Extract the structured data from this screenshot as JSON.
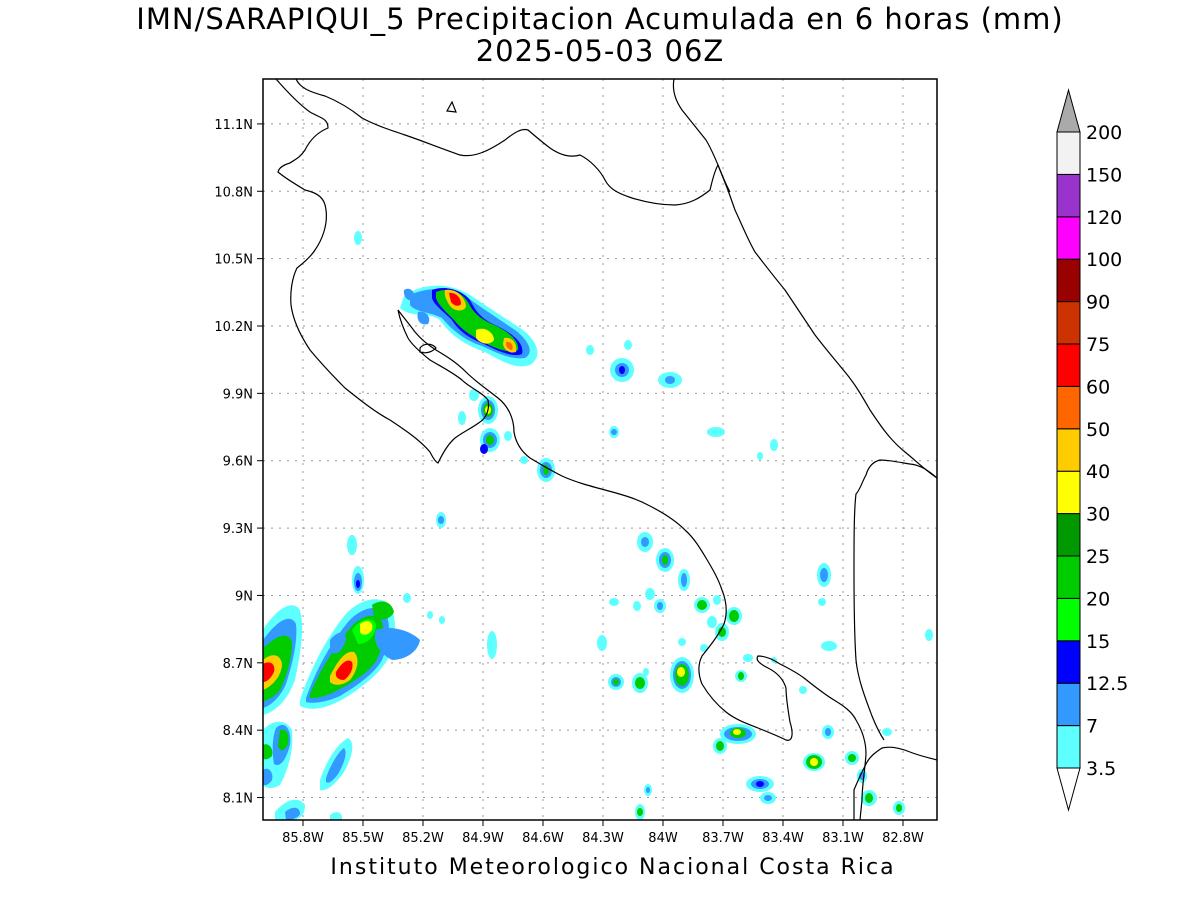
{
  "title": "IMN/SARAPIQUI_5 Precipitacion Acumulada en 6 horas (mm)",
  "subtitle": "2025-05-03 06Z",
  "credit": "Instituto Meteorologico Nacional Costa Rica",
  "map": {
    "lon_range": [
      -86.0,
      -82.63
    ],
    "lat_range": [
      8.0,
      11.3
    ],
    "lat_ticks": [
      {
        "value": 8.1,
        "label": "8.1N"
      },
      {
        "value": 8.4,
        "label": "8.4N"
      },
      {
        "value": 8.7,
        "label": "8.7N"
      },
      {
        "value": 9.0,
        "label": "9N"
      },
      {
        "value": 9.3,
        "label": "9.3N"
      },
      {
        "value": 9.6,
        "label": "9.6N"
      },
      {
        "value": 9.9,
        "label": "9.9N"
      },
      {
        "value": 10.2,
        "label": "10.2N"
      },
      {
        "value": 10.5,
        "label": "10.5N"
      },
      {
        "value": 10.8,
        "label": "10.8N"
      },
      {
        "value": 11.1,
        "label": "11.1N"
      }
    ],
    "lon_ticks": [
      {
        "value": -85.8,
        "label": "85.8W"
      },
      {
        "value": -85.5,
        "label": "85.5W"
      },
      {
        "value": -85.2,
        "label": "85.2W"
      },
      {
        "value": -84.9,
        "label": "84.9W"
      },
      {
        "value": -84.6,
        "label": "84.6W"
      },
      {
        "value": -84.3,
        "label": "84.3W"
      },
      {
        "value": -84.0,
        "label": "84W"
      },
      {
        "value": -83.7,
        "label": "83.7W"
      },
      {
        "value": -83.4,
        "label": "83.4W"
      },
      {
        "value": -83.1,
        "label": "83.1W"
      },
      {
        "value": -82.8,
        "label": "82.8W"
      }
    ]
  },
  "colorbar": {
    "unit": "mm",
    "levels": [
      {
        "value": "3.5",
        "color": "#5effff"
      },
      {
        "value": "7",
        "color": "#3399ff"
      },
      {
        "value": "12.5",
        "color": "#0000ff"
      },
      {
        "value": "15",
        "color": "#00ff00"
      },
      {
        "value": "20",
        "color": "#00cc00"
      },
      {
        "value": "25",
        "color": "#009900"
      },
      {
        "value": "30",
        "color": "#ffff00"
      },
      {
        "value": "40",
        "color": "#ffcc00"
      },
      {
        "value": "50",
        "color": "#ff6600"
      },
      {
        "value": "60",
        "color": "#ff0000"
      },
      {
        "value": "75",
        "color": "#cc3300"
      },
      {
        "value": "90",
        "color": "#990000"
      },
      {
        "value": "100",
        "color": "#ff00ff"
      },
      {
        "value": "120",
        "color": "#9933cc"
      },
      {
        "value": "150",
        "color": "#f2f2f2"
      },
      {
        "value": "200",
        "color": "#aaaaaa"
      }
    ]
  }
}
